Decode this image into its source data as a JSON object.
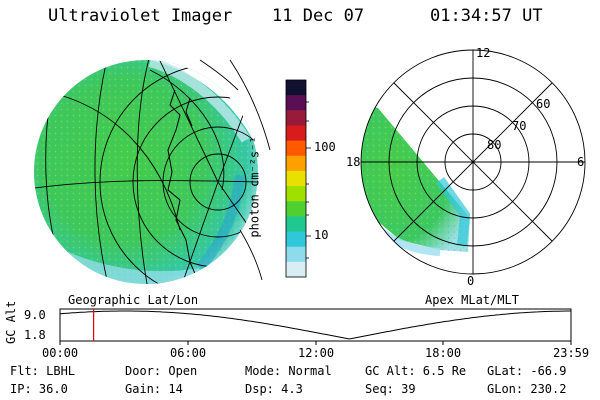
{
  "header": {
    "instrument": "Ultraviolet Imager",
    "date": "11 Dec 07",
    "time": "01:34:57 UT"
  },
  "colorbar": {
    "unit_label": "photon cm⁻²s⁻¹",
    "tick_labels": [
      "100",
      "10"
    ],
    "colors": [
      "#101030",
      "#5a0f55",
      "#9a1a3a",
      "#d81c1c",
      "#ff5a00",
      "#ffa000",
      "#e8e000",
      "#a0e000",
      "#50d030",
      "#20c890",
      "#30c8d8",
      "#8cdcec",
      "#d8eef4"
    ]
  },
  "geo_panel": {
    "label": "Geographic Lat/Lon"
  },
  "apex_panel": {
    "label": "Apex MLat/MLT",
    "lat_labels": [
      "80",
      "70",
      "60"
    ],
    "mlt_labels": [
      "12",
      "18",
      "6",
      "0"
    ]
  },
  "orbit_plot": {
    "ylabel": "GC Alt",
    "ytick_labels": [
      "9.0",
      "1.8"
    ],
    "xtick_labels": [
      "00:00",
      "06:00",
      "12:00",
      "18:00",
      "23:59"
    ],
    "curve_color": "#000000",
    "marker_color": "#e00000",
    "marker_time_hours": 1.58
  },
  "status": {
    "flt": "Flt: LBHL",
    "ip": "IP: 36.0",
    "door": "Door: Open",
    "gain": "Gain: 14",
    "mode": "Mode: Normal",
    "dsp": "Dsp:    4.3",
    "gcalt": "GC Alt: 6.5 Re",
    "seq": "Seq: 39",
    "glat": "GLat: -66.9",
    "glon": "GLon: 230.2"
  }
}
